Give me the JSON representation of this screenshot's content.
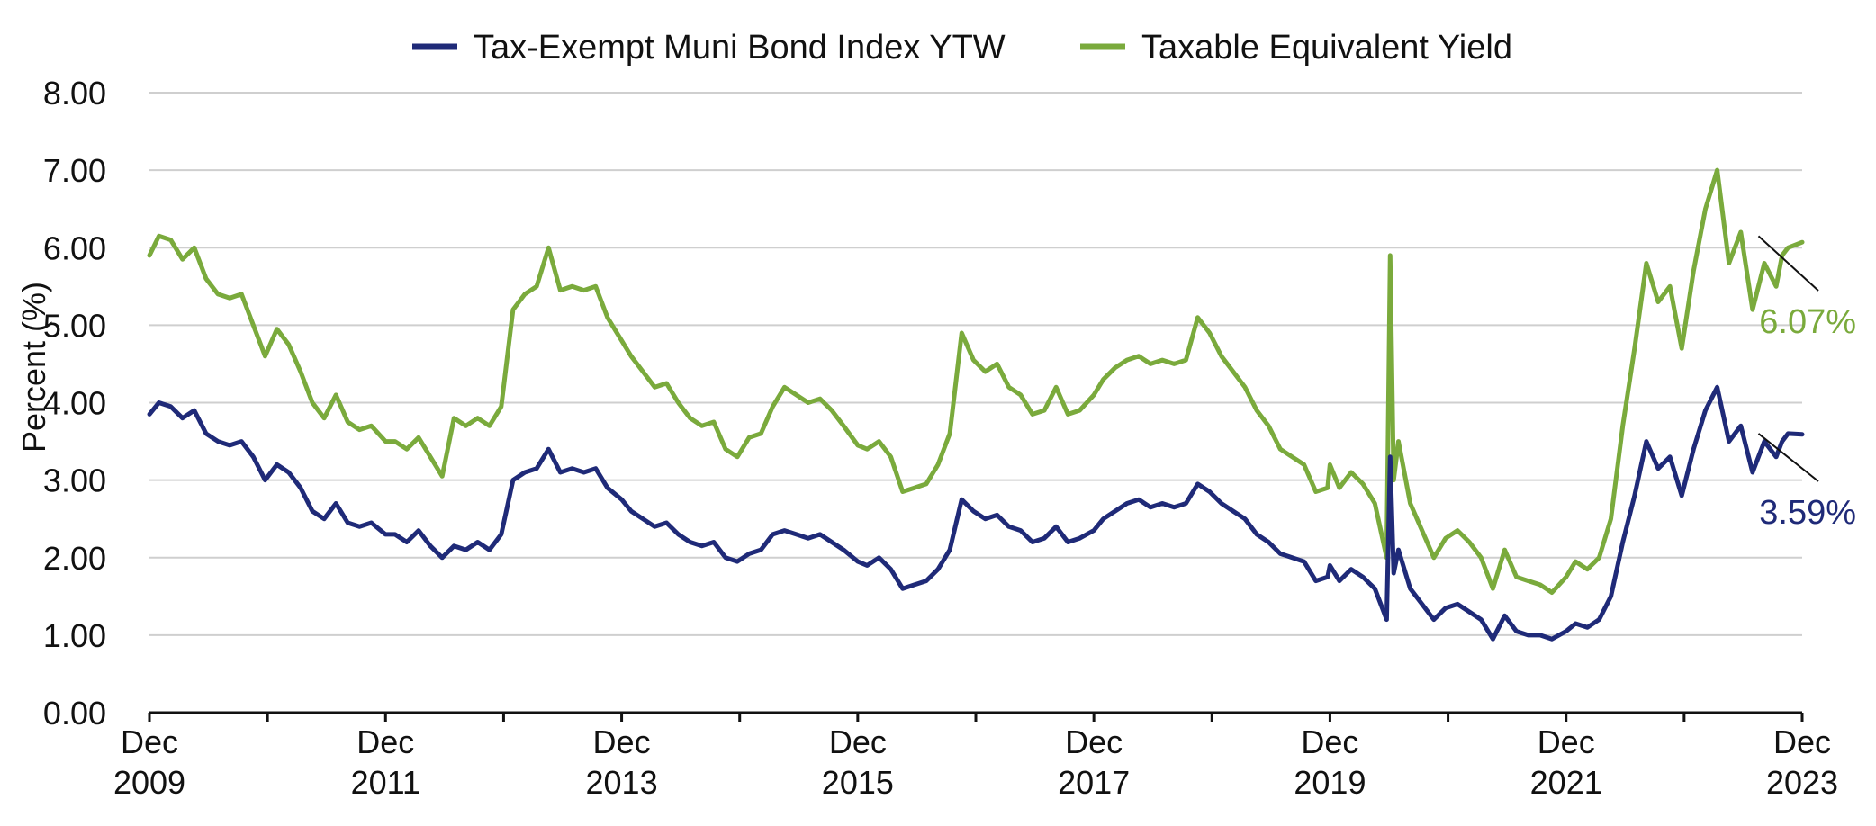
{
  "chart_data": {
    "type": "line",
    "title": "",
    "xlabel": "",
    "ylabel": "Percent (%)",
    "ylim": [
      0,
      8
    ],
    "yticks": [
      "0.00",
      "1.00",
      "2.00",
      "3.00",
      "4.00",
      "5.00",
      "6.00",
      "7.00",
      "8.00"
    ],
    "xlim": [
      2009.92,
      2023.92
    ],
    "xticks": [
      {
        "line1": "Dec",
        "line2": "2009",
        "x": 2009.92
      },
      {
        "line1": "Dec",
        "line2": "2011",
        "x": 2011.92
      },
      {
        "line1": "Dec",
        "line2": "2013",
        "x": 2013.92
      },
      {
        "line1": "Dec",
        "line2": "2015",
        "x": 2015.92
      },
      {
        "line1": "Dec",
        "line2": "2017",
        "x": 2017.92
      },
      {
        "line1": "Dec",
        "line2": "2019",
        "x": 2019.92
      },
      {
        "line1": "Dec",
        "line2": "2021",
        "x": 2021.92
      },
      {
        "line1": "Dec",
        "line2": "2023",
        "x": 2023.92
      }
    ],
    "grid": "horizontal",
    "legend_position": "top-center",
    "series": [
      {
        "name": "Tax-Exempt Muni Bond Index YTW",
        "color": "#1f2a78",
        "end_label": "3.59%",
        "points": [
          [
            2009.92,
            3.85
          ],
          [
            2010.0,
            4.0
          ],
          [
            2010.1,
            3.95
          ],
          [
            2010.2,
            3.8
          ],
          [
            2010.3,
            3.9
          ],
          [
            2010.4,
            3.6
          ],
          [
            2010.5,
            3.5
          ],
          [
            2010.6,
            3.45
          ],
          [
            2010.7,
            3.5
          ],
          [
            2010.8,
            3.3
          ],
          [
            2010.9,
            3.0
          ],
          [
            2011.0,
            3.2
          ],
          [
            2011.1,
            3.1
          ],
          [
            2011.2,
            2.9
          ],
          [
            2011.3,
            2.6
          ],
          [
            2011.4,
            2.5
          ],
          [
            2011.5,
            2.7
          ],
          [
            2011.6,
            2.45
          ],
          [
            2011.7,
            2.4
          ],
          [
            2011.8,
            2.45
          ],
          [
            2011.92,
            2.3
          ],
          [
            2012.0,
            2.3
          ],
          [
            2012.1,
            2.2
          ],
          [
            2012.2,
            2.35
          ],
          [
            2012.3,
            2.15
          ],
          [
            2012.4,
            2.0
          ],
          [
            2012.5,
            2.15
          ],
          [
            2012.6,
            2.1
          ],
          [
            2012.7,
            2.2
          ],
          [
            2012.8,
            2.1
          ],
          [
            2012.9,
            2.3
          ],
          [
            2013.0,
            3.0
          ],
          [
            2013.1,
            3.1
          ],
          [
            2013.2,
            3.15
          ],
          [
            2013.3,
            3.4
          ],
          [
            2013.4,
            3.1
          ],
          [
            2013.5,
            3.15
          ],
          [
            2013.6,
            3.1
          ],
          [
            2013.7,
            3.15
          ],
          [
            2013.8,
            2.9
          ],
          [
            2013.92,
            2.75
          ],
          [
            2014.0,
            2.6
          ],
          [
            2014.1,
            2.5
          ],
          [
            2014.2,
            2.4
          ],
          [
            2014.3,
            2.45
          ],
          [
            2014.4,
            2.3
          ],
          [
            2014.5,
            2.2
          ],
          [
            2014.6,
            2.15
          ],
          [
            2014.7,
            2.2
          ],
          [
            2014.8,
            2.0
          ],
          [
            2014.9,
            1.95
          ],
          [
            2015.0,
            2.05
          ],
          [
            2015.1,
            2.1
          ],
          [
            2015.2,
            2.3
          ],
          [
            2015.3,
            2.35
          ],
          [
            2015.4,
            2.3
          ],
          [
            2015.5,
            2.25
          ],
          [
            2015.6,
            2.3
          ],
          [
            2015.7,
            2.2
          ],
          [
            2015.8,
            2.1
          ],
          [
            2015.92,
            1.95
          ],
          [
            2016.0,
            1.9
          ],
          [
            2016.1,
            2.0
          ],
          [
            2016.2,
            1.85
          ],
          [
            2016.3,
            1.6
          ],
          [
            2016.4,
            1.65
          ],
          [
            2016.5,
            1.7
          ],
          [
            2016.6,
            1.85
          ],
          [
            2016.7,
            2.1
          ],
          [
            2016.8,
            2.75
          ],
          [
            2016.9,
            2.6
          ],
          [
            2017.0,
            2.5
          ],
          [
            2017.1,
            2.55
          ],
          [
            2017.2,
            2.4
          ],
          [
            2017.3,
            2.35
          ],
          [
            2017.4,
            2.2
          ],
          [
            2017.5,
            2.25
          ],
          [
            2017.6,
            2.4
          ],
          [
            2017.7,
            2.2
          ],
          [
            2017.8,
            2.25
          ],
          [
            2017.92,
            2.35
          ],
          [
            2018.0,
            2.5
          ],
          [
            2018.1,
            2.6
          ],
          [
            2018.2,
            2.7
          ],
          [
            2018.3,
            2.75
          ],
          [
            2018.4,
            2.65
          ],
          [
            2018.5,
            2.7
          ],
          [
            2018.6,
            2.65
          ],
          [
            2018.7,
            2.7
          ],
          [
            2018.8,
            2.95
          ],
          [
            2018.9,
            2.85
          ],
          [
            2019.0,
            2.7
          ],
          [
            2019.1,
            2.6
          ],
          [
            2019.2,
            2.5
          ],
          [
            2019.3,
            2.3
          ],
          [
            2019.4,
            2.2
          ],
          [
            2019.5,
            2.05
          ],
          [
            2019.6,
            2.0
          ],
          [
            2019.7,
            1.95
          ],
          [
            2019.8,
            1.7
          ],
          [
            2019.9,
            1.75
          ],
          [
            2019.92,
            1.9
          ],
          [
            2020.0,
            1.7
          ],
          [
            2020.1,
            1.85
          ],
          [
            2020.2,
            1.75
          ],
          [
            2020.3,
            1.6
          ],
          [
            2020.4,
            1.2
          ],
          [
            2020.43,
            3.3
          ],
          [
            2020.46,
            1.8
          ],
          [
            2020.5,
            2.1
          ],
          [
            2020.6,
            1.6
          ],
          [
            2020.7,
            1.4
          ],
          [
            2020.8,
            1.2
          ],
          [
            2020.9,
            1.35
          ],
          [
            2021.0,
            1.4
          ],
          [
            2021.1,
            1.3
          ],
          [
            2021.2,
            1.2
          ],
          [
            2021.3,
            0.95
          ],
          [
            2021.4,
            1.25
          ],
          [
            2021.5,
            1.05
          ],
          [
            2021.6,
            1.0
          ],
          [
            2021.7,
            1.0
          ],
          [
            2021.8,
            0.95
          ],
          [
            2021.92,
            1.05
          ],
          [
            2022.0,
            1.15
          ],
          [
            2022.1,
            1.1
          ],
          [
            2022.2,
            1.2
          ],
          [
            2022.3,
            1.5
          ],
          [
            2022.4,
            2.2
          ],
          [
            2022.5,
            2.8
          ],
          [
            2022.6,
            3.5
          ],
          [
            2022.7,
            3.15
          ],
          [
            2022.8,
            3.3
          ],
          [
            2022.9,
            2.8
          ],
          [
            2023.0,
            3.4
          ],
          [
            2023.1,
            3.9
          ],
          [
            2023.2,
            4.2
          ],
          [
            2023.3,
            3.5
          ],
          [
            2023.4,
            3.7
          ],
          [
            2023.5,
            3.1
          ],
          [
            2023.6,
            3.5
          ],
          [
            2023.7,
            3.3
          ],
          [
            2023.75,
            3.5
          ],
          [
            2023.8,
            3.6
          ],
          [
            2023.92,
            3.59
          ]
        ]
      },
      {
        "name": "Taxable Equivalent Yield",
        "color": "#7aaa3c",
        "end_label": "6.07%",
        "points": [
          [
            2009.92,
            5.9
          ],
          [
            2010.0,
            6.15
          ],
          [
            2010.1,
            6.1
          ],
          [
            2010.2,
            5.85
          ],
          [
            2010.3,
            6.0
          ],
          [
            2010.4,
            5.6
          ],
          [
            2010.5,
            5.4
          ],
          [
            2010.6,
            5.35
          ],
          [
            2010.7,
            5.4
          ],
          [
            2010.8,
            5.0
          ],
          [
            2010.9,
            4.6
          ],
          [
            2011.0,
            4.95
          ],
          [
            2011.1,
            4.75
          ],
          [
            2011.2,
            4.4
          ],
          [
            2011.3,
            4.0
          ],
          [
            2011.4,
            3.8
          ],
          [
            2011.5,
            4.1
          ],
          [
            2011.6,
            3.75
          ],
          [
            2011.7,
            3.65
          ],
          [
            2011.8,
            3.7
          ],
          [
            2011.92,
            3.5
          ],
          [
            2012.0,
            3.5
          ],
          [
            2012.1,
            3.4
          ],
          [
            2012.2,
            3.55
          ],
          [
            2012.3,
            3.3
          ],
          [
            2012.4,
            3.05
          ],
          [
            2012.5,
            3.8
          ],
          [
            2012.6,
            3.7
          ],
          [
            2012.7,
            3.8
          ],
          [
            2012.8,
            3.7
          ],
          [
            2012.9,
            3.95
          ],
          [
            2013.0,
            5.2
          ],
          [
            2013.1,
            5.4
          ],
          [
            2013.2,
            5.5
          ],
          [
            2013.3,
            6.0
          ],
          [
            2013.4,
            5.45
          ],
          [
            2013.5,
            5.5
          ],
          [
            2013.6,
            5.45
          ],
          [
            2013.7,
            5.5
          ],
          [
            2013.8,
            5.1
          ],
          [
            2013.92,
            4.8
          ],
          [
            2014.0,
            4.6
          ],
          [
            2014.1,
            4.4
          ],
          [
            2014.2,
            4.2
          ],
          [
            2014.3,
            4.25
          ],
          [
            2014.4,
            4.0
          ],
          [
            2014.5,
            3.8
          ],
          [
            2014.6,
            3.7
          ],
          [
            2014.7,
            3.75
          ],
          [
            2014.8,
            3.4
          ],
          [
            2014.9,
            3.3
          ],
          [
            2015.0,
            3.55
          ],
          [
            2015.1,
            3.6
          ],
          [
            2015.2,
            3.95
          ],
          [
            2015.3,
            4.2
          ],
          [
            2015.4,
            4.1
          ],
          [
            2015.5,
            4.0
          ],
          [
            2015.6,
            4.05
          ],
          [
            2015.7,
            3.9
          ],
          [
            2015.8,
            3.7
          ],
          [
            2015.92,
            3.45
          ],
          [
            2016.0,
            3.4
          ],
          [
            2016.1,
            3.5
          ],
          [
            2016.2,
            3.3
          ],
          [
            2016.3,
            2.85
          ],
          [
            2016.4,
            2.9
          ],
          [
            2016.5,
            2.95
          ],
          [
            2016.6,
            3.2
          ],
          [
            2016.7,
            3.6
          ],
          [
            2016.8,
            4.9
          ],
          [
            2016.9,
            4.55
          ],
          [
            2017.0,
            4.4
          ],
          [
            2017.1,
            4.5
          ],
          [
            2017.2,
            4.2
          ],
          [
            2017.3,
            4.1
          ],
          [
            2017.4,
            3.85
          ],
          [
            2017.5,
            3.9
          ],
          [
            2017.6,
            4.2
          ],
          [
            2017.7,
            3.85
          ],
          [
            2017.8,
            3.9
          ],
          [
            2017.92,
            4.1
          ],
          [
            2018.0,
            4.3
          ],
          [
            2018.1,
            4.45
          ],
          [
            2018.2,
            4.55
          ],
          [
            2018.3,
            4.6
          ],
          [
            2018.4,
            4.5
          ],
          [
            2018.5,
            4.55
          ],
          [
            2018.6,
            4.5
          ],
          [
            2018.7,
            4.55
          ],
          [
            2018.8,
            5.1
          ],
          [
            2018.9,
            4.9
          ],
          [
            2019.0,
            4.6
          ],
          [
            2019.1,
            4.4
          ],
          [
            2019.2,
            4.2
          ],
          [
            2019.3,
            3.9
          ],
          [
            2019.4,
            3.7
          ],
          [
            2019.5,
            3.4
          ],
          [
            2019.6,
            3.3
          ],
          [
            2019.7,
            3.2
          ],
          [
            2019.8,
            2.85
          ],
          [
            2019.9,
            2.9
          ],
          [
            2019.92,
            3.2
          ],
          [
            2020.0,
            2.9
          ],
          [
            2020.1,
            3.1
          ],
          [
            2020.2,
            2.95
          ],
          [
            2020.3,
            2.7
          ],
          [
            2020.4,
            2.0
          ],
          [
            2020.43,
            5.9
          ],
          [
            2020.46,
            3.0
          ],
          [
            2020.5,
            3.5
          ],
          [
            2020.6,
            2.7
          ],
          [
            2020.7,
            2.35
          ],
          [
            2020.8,
            2.0
          ],
          [
            2020.9,
            2.25
          ],
          [
            2021.0,
            2.35
          ],
          [
            2021.1,
            2.2
          ],
          [
            2021.2,
            2.0
          ],
          [
            2021.3,
            1.6
          ],
          [
            2021.4,
            2.1
          ],
          [
            2021.5,
            1.75
          ],
          [
            2021.6,
            1.7
          ],
          [
            2021.7,
            1.65
          ],
          [
            2021.8,
            1.55
          ],
          [
            2021.92,
            1.75
          ],
          [
            2022.0,
            1.95
          ],
          [
            2022.1,
            1.85
          ],
          [
            2022.2,
            2.0
          ],
          [
            2022.3,
            2.5
          ],
          [
            2022.4,
            3.7
          ],
          [
            2022.5,
            4.7
          ],
          [
            2022.6,
            5.8
          ],
          [
            2022.7,
            5.3
          ],
          [
            2022.8,
            5.5
          ],
          [
            2022.9,
            4.7
          ],
          [
            2023.0,
            5.7
          ],
          [
            2023.1,
            6.5
          ],
          [
            2023.2,
            7.0
          ],
          [
            2023.3,
            5.8
          ],
          [
            2023.4,
            6.2
          ],
          [
            2023.5,
            5.2
          ],
          [
            2023.6,
            5.8
          ],
          [
            2023.7,
            5.5
          ],
          [
            2023.75,
            5.9
          ],
          [
            2023.8,
            6.0
          ],
          [
            2023.92,
            6.07
          ]
        ]
      }
    ]
  }
}
